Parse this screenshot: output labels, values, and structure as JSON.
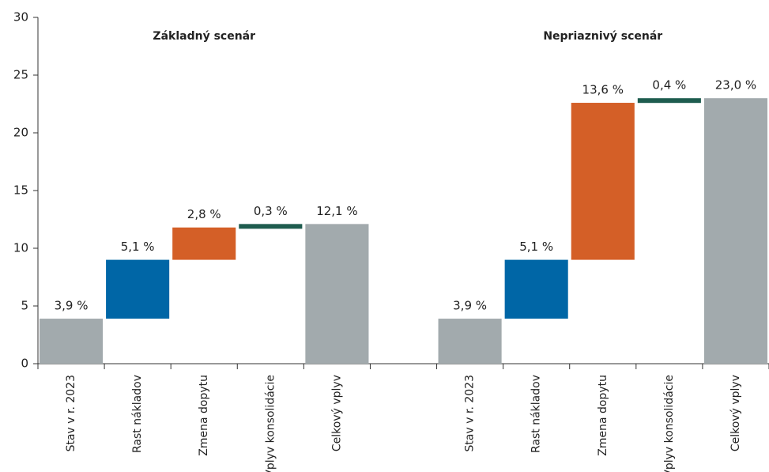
{
  "chart_data": {
    "type": "waterfall",
    "annotations": [
      "Základný scenár",
      "Nepriaznivý scenár"
    ],
    "categories": [
      "Stav v r. 2023",
      "Rast nákladov",
      "Zmena dopytu",
      "Vplyv konsolidácie",
      "Celkový vplyv",
      null,
      "Stav v r. 2023",
      "Rast nákladov",
      "Zmena dopytu",
      "Vplyv konsolidácie",
      "Celkový vplyv"
    ],
    "values": [
      3.9,
      5.1,
      2.8,
      0.3,
      12.1,
      null,
      3.9,
      5.1,
      13.6,
      0.4,
      23.0
    ],
    "value_labels": [
      "3,9 %",
      "5,1 %",
      "2,8 %",
      "0,3 %",
      "12,1 %",
      null,
      "3,9 %",
      "5,1 %",
      "13,6 %",
      "0,4 %",
      "23,0 %"
    ],
    "measure": [
      "absolute",
      "relative",
      "relative",
      "relative",
      "total",
      null,
      "absolute",
      "relative",
      "relative",
      "relative",
      "total"
    ],
    "colors": [
      "#a2aaad",
      "#0066a6",
      "#d45f27",
      "#1e5c4f",
      "#a2aaad",
      null,
      "#a2aaad",
      "#0066a6",
      "#d45f27",
      "#1e5c4f",
      "#a2aaad"
    ],
    "ylim": [
      0,
      30
    ],
    "yticks": [
      0,
      5,
      10,
      15,
      20,
      25,
      30
    ],
    "grid": false
  }
}
